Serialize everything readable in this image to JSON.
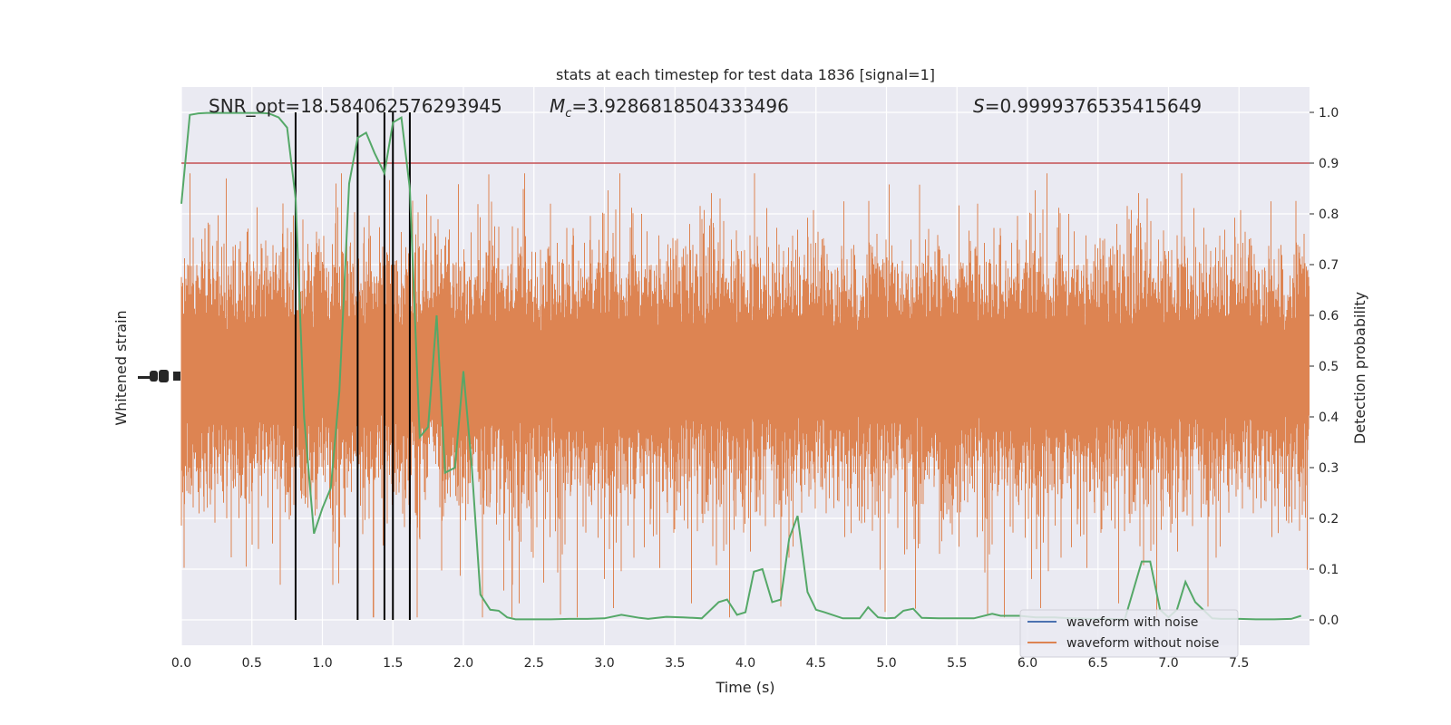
{
  "colors": {
    "panel_bg": "#eaeaf2",
    "grid": "#ffffff",
    "waveform_noise": "#4c72b0",
    "waveform_clean": "#dd8452",
    "probability": "#55a868",
    "threshold": "#c44e52",
    "markers": "#000000"
  },
  "chart_data": {
    "type": "line",
    "title": "stats at each timestep for test data 1836 [signal=1]",
    "xlabel": "Time (s)",
    "ylabel_left": "Whitened strain",
    "ylabel_right": "Detection probability",
    "xlim": [
      0,
      8
    ],
    "ylim_right": [
      -0.05,
      1.05
    ],
    "x_ticks": [
      "0.0",
      "0.5",
      "1.0",
      "1.5",
      "2.0",
      "2.5",
      "3.0",
      "3.5",
      "4.0",
      "4.5",
      "5.0",
      "5.5",
      "6.0",
      "6.5",
      "7.0",
      "7.5"
    ],
    "y_right_ticks": [
      "0.0",
      "0.1",
      "0.2",
      "0.3",
      "0.4",
      "0.5",
      "0.6",
      "0.7",
      "0.8",
      "0.9",
      "1.0"
    ],
    "grid": true,
    "legend": {
      "placement": "lower-right",
      "entries": [
        "waveform with noise",
        "waveform without noise"
      ]
    },
    "annotations": {
      "snr": "SNR_opt=18.584062576293945",
      "mc_symbol": "M",
      "mc_sub": "c",
      "mc_value": "=3.9286818504333496",
      "s_symbol": "S",
      "s_value": "=0.9999376535415649"
    },
    "threshold": 0.9,
    "detection_times": [
      0.81,
      1.25,
      1.44,
      1.5,
      1.62
    ],
    "probability": {
      "x": [
        0.0,
        0.06,
        0.12,
        0.18,
        0.25,
        0.31,
        0.37,
        0.44,
        0.5,
        0.56,
        0.62,
        0.69,
        0.75,
        0.81,
        0.87,
        0.94,
        1.0,
        1.06,
        1.12,
        1.19,
        1.25,
        1.31,
        1.37,
        1.44,
        1.5,
        1.56,
        1.62,
        1.69,
        1.75,
        1.81,
        1.87,
        1.94,
        2.0,
        2.06,
        2.12,
        2.19,
        2.25,
        2.31,
        2.37,
        2.44,
        2.5,
        2.62,
        2.75,
        2.88,
        3.0,
        3.12,
        3.25,
        3.31,
        3.44,
        3.56,
        3.69,
        3.81,
        3.87,
        3.94,
        4.0,
        4.06,
        4.12,
        4.19,
        4.25,
        4.31,
        4.37,
        4.44,
        4.5,
        4.56,
        4.69,
        4.81,
        4.87,
        4.94,
        5.0,
        5.06,
        5.12,
        5.19,
        5.25,
        5.37,
        5.5,
        5.62,
        5.75,
        5.81,
        5.94,
        6.06,
        6.19,
        6.31,
        6.44,
        6.56,
        6.69,
        6.81,
        6.87,
        6.94,
        7.0,
        7.06,
        7.12,
        7.19,
        7.31,
        7.37,
        7.5,
        7.62,
        7.75,
        7.87,
        7.94
      ],
      "y": [
        0.82,
        0.995,
        0.998,
        0.999,
        0.999,
        0.999,
        0.999,
        0.999,
        0.999,
        0.999,
        0.998,
        0.99,
        0.97,
        0.83,
        0.4,
        0.17,
        0.22,
        0.26,
        0.45,
        0.86,
        0.95,
        0.96,
        0.92,
        0.88,
        0.98,
        0.99,
        0.85,
        0.36,
        0.38,
        0.6,
        0.29,
        0.3,
        0.49,
        0.3,
        0.05,
        0.02,
        0.018,
        0.005,
        0.001,
        0.001,
        0.001,
        0.001,
        0.002,
        0.002,
        0.003,
        0.01,
        0.004,
        0.002,
        0.006,
        0.005,
        0.003,
        0.035,
        0.04,
        0.01,
        0.015,
        0.095,
        0.1,
        0.035,
        0.04,
        0.16,
        0.205,
        0.055,
        0.02,
        0.015,
        0.003,
        0.003,
        0.025,
        0.005,
        0.003,
        0.004,
        0.018,
        0.022,
        0.004,
        0.003,
        0.003,
        0.003,
        0.012,
        0.008,
        0.008,
        0.005,
        0.005,
        0.003,
        0.002,
        0.002,
        0.001,
        0.115,
        0.115,
        0.02,
        0.005,
        0.02,
        0.075,
        0.035,
        0.003,
        0.002,
        0.002,
        0.001,
        0.001,
        0.002,
        0.008
      ]
    }
  }
}
